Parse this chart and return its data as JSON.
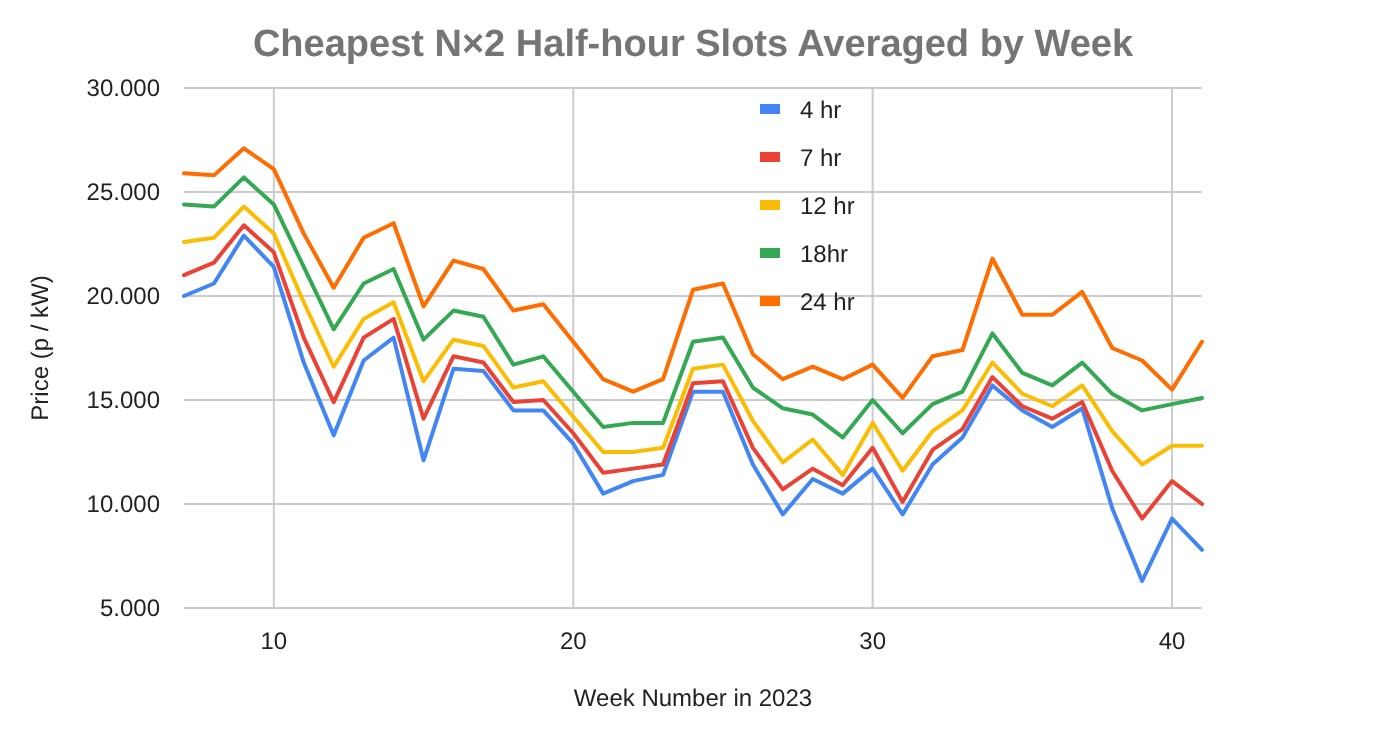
{
  "chart_data": {
    "type": "line",
    "title": "Cheapest N×2 Half-hour Slots Averaged by Week",
    "xlabel": "Week Number in 2023",
    "ylabel": "Price (p / kW)",
    "x": [
      7,
      8,
      9,
      10,
      11,
      12,
      13,
      14,
      15,
      16,
      17,
      18,
      19,
      20,
      21,
      22,
      23,
      24,
      25,
      26,
      27,
      28,
      29,
      30,
      31,
      32,
      33,
      34,
      35,
      36,
      37,
      38,
      39,
      40,
      41
    ],
    "series": [
      {
        "name": "4 hr",
        "color": "#4285f4",
        "values": [
          20.0,
          20.6,
          22.9,
          21.4,
          16.8,
          13.3,
          16.9,
          18.0,
          12.1,
          16.5,
          16.4,
          14.5,
          14.5,
          12.9,
          10.5,
          11.1,
          11.4,
          15.4,
          15.4,
          11.9,
          9.5,
          11.2,
          10.5,
          11.7,
          9.5,
          11.9,
          13.2,
          15.7,
          14.5,
          13.7,
          14.6,
          9.8,
          6.3,
          9.3,
          7.8
        ]
      },
      {
        "name": "7 hr",
        "color": "#ea4335",
        "values": [
          21.0,
          21.6,
          23.4,
          22.1,
          18.0,
          14.9,
          18.0,
          18.9,
          14.1,
          17.1,
          16.8,
          14.9,
          15.0,
          13.4,
          11.5,
          11.7,
          11.9,
          15.8,
          15.9,
          12.7,
          10.7,
          11.7,
          10.9,
          12.7,
          10.1,
          12.6,
          13.6,
          16.1,
          14.7,
          14.1,
          14.9,
          11.6,
          9.3,
          11.1,
          10.0
        ]
      },
      {
        "name": "12 hr",
        "color": "#fbbc04",
        "values": [
          22.6,
          22.8,
          24.3,
          23.0,
          19.7,
          16.6,
          18.9,
          19.7,
          15.9,
          17.9,
          17.6,
          15.6,
          15.9,
          14.2,
          12.5,
          12.5,
          12.7,
          16.5,
          16.7,
          14.0,
          12.0,
          13.1,
          11.4,
          13.9,
          11.6,
          13.5,
          14.5,
          16.8,
          15.3,
          14.7,
          15.7,
          13.5,
          11.9,
          12.8,
          12.8
        ]
      },
      {
        "name": "18hr",
        "color": "#34a853",
        "values": [
          24.4,
          24.3,
          25.7,
          24.4,
          21.4,
          18.4,
          20.6,
          21.3,
          17.9,
          19.3,
          19.0,
          16.7,
          17.1,
          15.4,
          13.7,
          13.9,
          13.9,
          17.8,
          18.0,
          15.6,
          14.6,
          14.3,
          13.2,
          15.0,
          13.4,
          14.8,
          15.4,
          18.2,
          16.3,
          15.7,
          16.8,
          15.3,
          14.5,
          14.8,
          15.1
        ]
      },
      {
        "name": "24 hr",
        "color": "#ff6d01",
        "values": [
          25.9,
          25.8,
          27.1,
          26.1,
          23.0,
          20.4,
          22.8,
          23.5,
          19.5,
          21.7,
          21.3,
          19.3,
          19.6,
          17.8,
          16.0,
          15.4,
          16.0,
          20.3,
          20.6,
          17.2,
          16.0,
          16.6,
          16.0,
          16.7,
          15.1,
          17.1,
          17.4,
          21.8,
          19.1,
          19.1,
          20.2,
          17.5,
          16.9,
          15.5,
          17.8
        ]
      }
    ],
    "xlim": [
      7,
      41
    ],
    "xticks": [
      10,
      20,
      30,
      40
    ],
    "ylim": [
      5,
      30
    ],
    "yticks": [
      {
        "value": 5,
        "label": "5.000"
      },
      {
        "value": 10,
        "label": "10.000"
      },
      {
        "value": 15,
        "label": "15.000"
      },
      {
        "value": 20,
        "label": "20.000"
      },
      {
        "value": 25,
        "label": "25.000"
      },
      {
        "value": 30,
        "label": "30.000"
      }
    ],
    "grid": true,
    "legend": "top",
    "marker": "none",
    "line_style": "solid"
  }
}
